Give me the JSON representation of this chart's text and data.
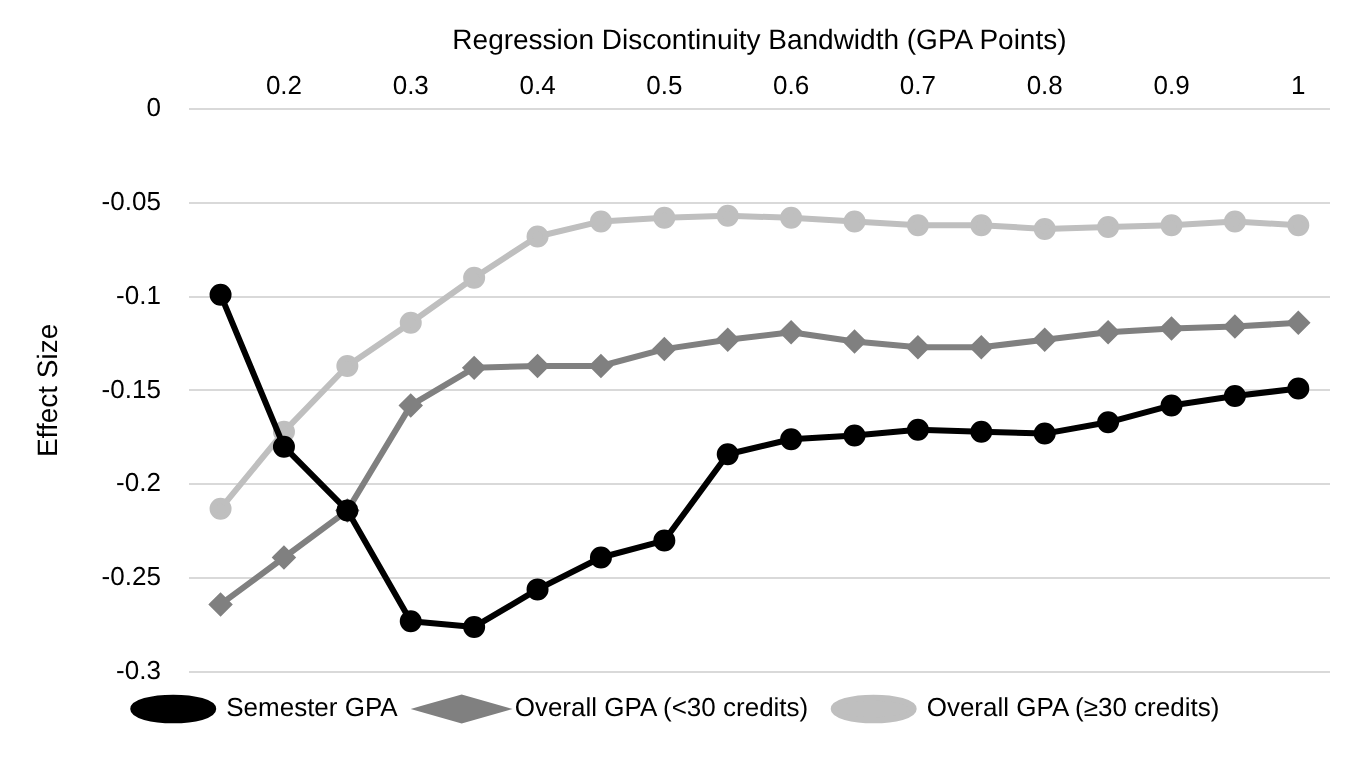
{
  "chart_data": {
    "type": "line",
    "xlabel": "Regression Discontinuity Bandwidth (GPA Points)",
    "ylabel": "Effect Size",
    "x": [
      0.15,
      0.2,
      0.25,
      0.3,
      0.35,
      0.4,
      0.45,
      0.5,
      0.55,
      0.6,
      0.65,
      0.7,
      0.75,
      0.8,
      0.85,
      0.9,
      0.95,
      1
    ],
    "xlim": [
      0.125,
      1.025
    ],
    "xticks": [
      0.2,
      0.3,
      0.4,
      0.5,
      0.6,
      0.7,
      0.8,
      0.9,
      1
    ],
    "ylim": [
      -0.3,
      0
    ],
    "yticks": [
      0,
      -0.05,
      -0.1,
      -0.15,
      -0.2,
      -0.25,
      -0.3
    ],
    "grid": "y",
    "legend": "bottom",
    "line_style": "solid",
    "series": [
      {
        "name": "Semester GPA",
        "color": "#000000",
        "marker": "circle",
        "values": [
          -0.099,
          -0.18,
          -0.214,
          -0.273,
          -0.276,
          -0.256,
          -0.239,
          -0.23,
          -0.184,
          -0.176,
          -0.174,
          -0.171,
          -0.172,
          -0.173,
          -0.167,
          -0.158,
          -0.153,
          -0.149
        ]
      },
      {
        "name": "Overall GPA (<30 credits)",
        "color": "#808080",
        "marker": "diamond",
        "values": [
          -0.264,
          -0.239,
          -0.214,
          -0.158,
          -0.138,
          -0.137,
          -0.137,
          -0.128,
          -0.123,
          -0.119,
          -0.124,
          -0.127,
          -0.127,
          -0.123,
          -0.119,
          -0.117,
          -0.116,
          -0.114
        ]
      },
      {
        "name": "Overall GPA (≥30 credits)",
        "color": "#bfbfbf",
        "marker": "circle",
        "values": [
          -0.213,
          -0.172,
          -0.137,
          -0.114,
          -0.09,
          -0.068,
          -0.06,
          -0.058,
          -0.057,
          -0.058,
          -0.06,
          -0.062,
          -0.062,
          -0.064,
          -0.063,
          -0.062,
          -0.06,
          -0.062
        ]
      }
    ]
  }
}
